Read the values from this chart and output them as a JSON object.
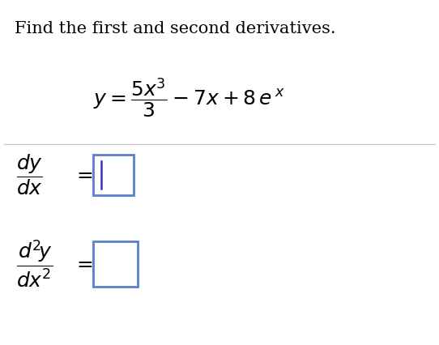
{
  "title": "Find the first and second derivatives.",
  "title_fontsize": 15,
  "background_color": "#ffffff",
  "text_color": "#000000",
  "box_color": "#5b7fcb",
  "eq_fontsize": 16,
  "deriv_fontsize": 16,
  "sep_line_color": "#c8c8c8",
  "cursor_color": "#3333bb"
}
